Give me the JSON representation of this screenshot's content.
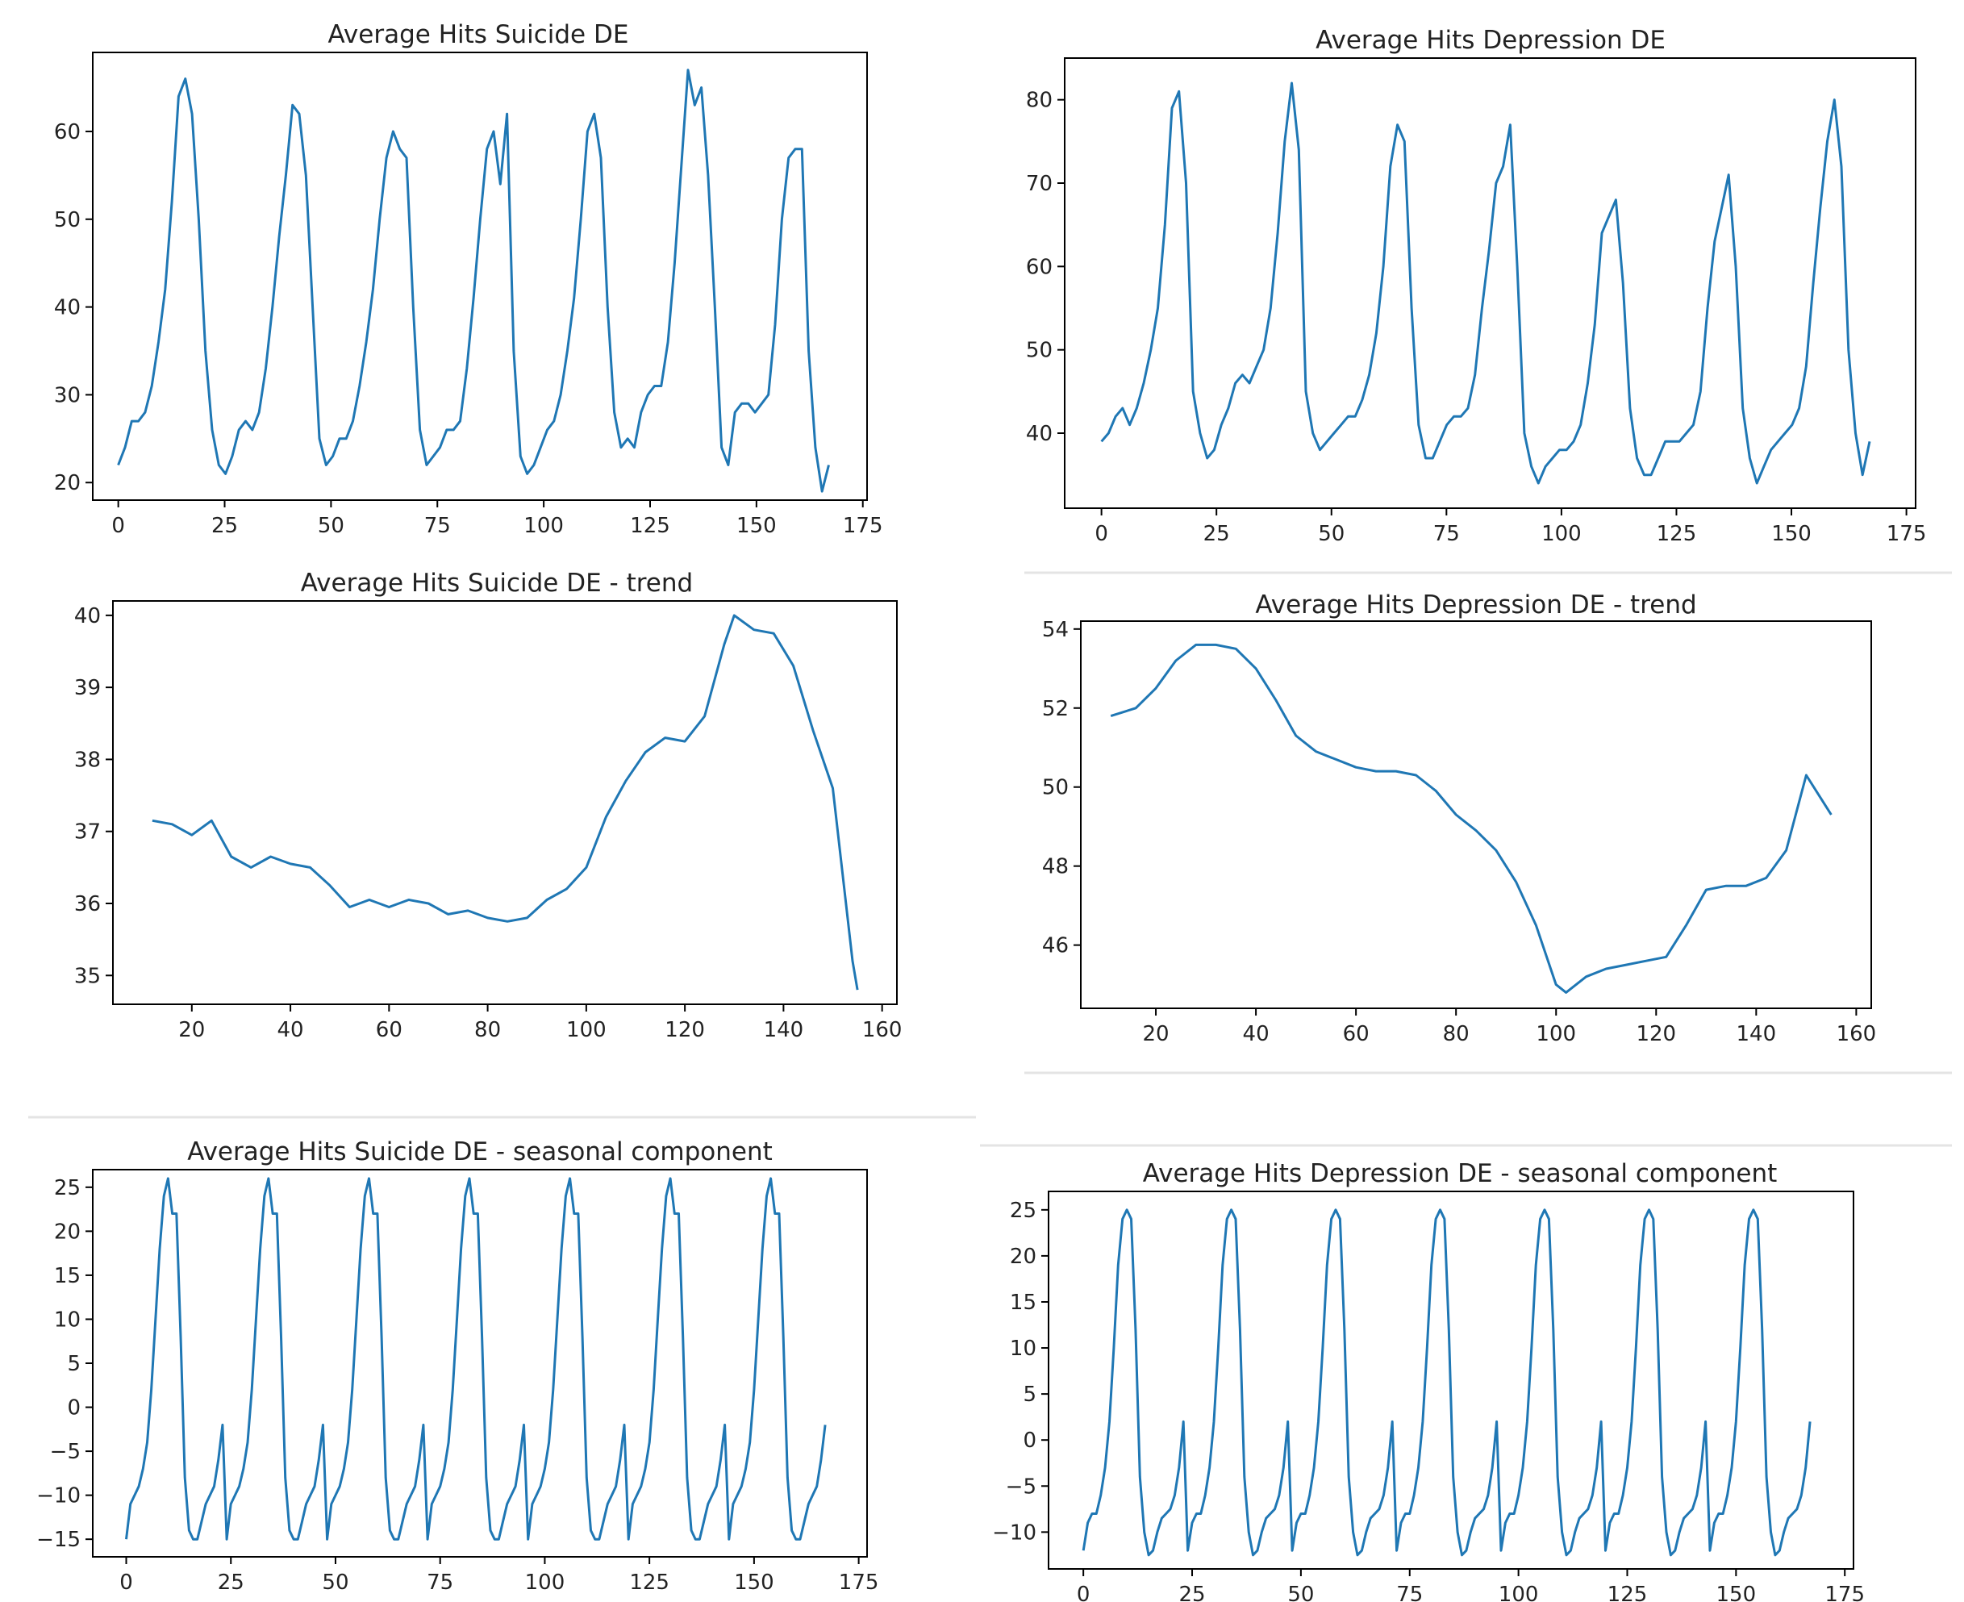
{
  "line_color": "#1f77b4",
  "axis_color": "#000000",
  "chart_data": [
    {
      "id": "suicide-raw",
      "type": "line",
      "title": "Average Hits Suicide DE",
      "xlabel": "",
      "ylabel": "",
      "xlim": [
        -6,
        176
      ],
      "ylim": [
        18,
        69
      ],
      "xticks": [
        0,
        25,
        50,
        75,
        100,
        125,
        150,
        175
      ],
      "yticks": [
        20,
        30,
        40,
        50,
        60
      ],
      "series": [
        {
          "name": "Average Hits Suicide DE",
          "x0": 0,
          "values": [
            22,
            24,
            27,
            27,
            28,
            31,
            36,
            42,
            52,
            64,
            66,
            62,
            50,
            35,
            26,
            22,
            21,
            23,
            26,
            27,
            26,
            28,
            33,
            40,
            48,
            55,
            63,
            62,
            55,
            40,
            25,
            22,
            23,
            25,
            25,
            27,
            31,
            36,
            42,
            50,
            57,
            60,
            58,
            57,
            40,
            26,
            22,
            23,
            24,
            26,
            26,
            27,
            33,
            41,
            50,
            58,
            60,
            54,
            62,
            35,
            23,
            21,
            22,
            24,
            26,
            27,
            30,
            35,
            41,
            50,
            60,
            62,
            57,
            40,
            28,
            24,
            25,
            24,
            28,
            30,
            31,
            31,
            36,
            45,
            56,
            67,
            63,
            65,
            55,
            40,
            24,
            22,
            28,
            29,
            29,
            28,
            29,
            30,
            38,
            50,
            57,
            58,
            58,
            35,
            24,
            19,
            22
          ]
        }
      ]
    },
    {
      "id": "depression-raw",
      "type": "line",
      "title": "Average Hits Depression DE",
      "xlabel": "",
      "ylabel": "",
      "xlim": [
        -8,
        177
      ],
      "ylim": [
        31,
        85
      ],
      "xticks": [
        0,
        25,
        50,
        75,
        100,
        125,
        150,
        175
      ],
      "yticks": [
        40,
        50,
        60,
        70,
        80
      ],
      "series": [
        {
          "name": "Average Hits Depression DE",
          "x0": 0,
          "values": [
            39,
            40,
            42,
            43,
            41,
            43,
            46,
            50,
            55,
            65,
            79,
            81,
            70,
            45,
            40,
            37,
            38,
            41,
            43,
            46,
            47,
            46,
            48,
            50,
            55,
            64,
            75,
            82,
            74,
            45,
            40,
            38,
            39,
            40,
            41,
            42,
            42,
            44,
            47,
            52,
            60,
            72,
            77,
            75,
            55,
            41,
            37,
            37,
            39,
            41,
            42,
            42,
            43,
            47,
            55,
            62,
            70,
            72,
            77,
            60,
            40,
            36,
            34,
            36,
            37,
            38,
            38,
            39,
            41,
            46,
            53,
            64,
            66,
            68,
            58,
            43,
            37,
            35,
            35,
            37,
            39,
            39,
            39,
            40,
            41,
            45,
            55,
            63,
            67,
            71,
            60,
            43,
            37,
            34,
            36,
            38,
            39,
            40,
            41,
            43,
            48,
            58,
            67,
            75,
            80,
            72,
            50,
            40,
            35,
            39
          ]
        }
      ]
    },
    {
      "id": "suicide-trend",
      "type": "line",
      "title": "Average Hits Suicide DE - trend",
      "xlabel": "",
      "ylabel": "",
      "xlim": [
        4,
        163
      ],
      "ylim": [
        34.6,
        40.2
      ],
      "xticks": [
        20,
        40,
        60,
        80,
        100,
        120,
        140,
        160
      ],
      "yticks": [
        35,
        36,
        37,
        38,
        39,
        40
      ],
      "series": [
        {
          "name": "trend",
          "x": [
            12,
            16,
            20,
            24,
            28,
            32,
            36,
            40,
            44,
            48,
            52,
            56,
            60,
            64,
            68,
            72,
            76,
            80,
            84,
            88,
            92,
            96,
            100,
            104,
            108,
            112,
            116,
            120,
            124,
            128,
            130,
            134,
            138,
            142,
            146,
            150,
            154,
            155
          ],
          "values": [
            37.15,
            37.1,
            36.95,
            37.15,
            36.65,
            36.5,
            36.65,
            36.55,
            36.5,
            36.25,
            35.95,
            36.05,
            35.95,
            36.05,
            36.0,
            35.85,
            35.9,
            35.8,
            35.75,
            35.8,
            36.05,
            36.2,
            36.5,
            37.2,
            37.7,
            38.1,
            38.3,
            38.25,
            38.6,
            39.6,
            40.0,
            39.8,
            39.75,
            39.3,
            38.4,
            37.6,
            35.2,
            34.8
          ]
        }
      ]
    },
    {
      "id": "depression-trend",
      "type": "line",
      "title": "Average Hits Depression DE - trend",
      "xlabel": "",
      "ylabel": "",
      "xlim": [
        5,
        163
      ],
      "ylim": [
        44.4,
        54.2
      ],
      "xticks": [
        20,
        40,
        60,
        80,
        100,
        120,
        140,
        160
      ],
      "yticks": [
        46,
        48,
        50,
        52,
        54
      ],
      "series": [
        {
          "name": "trend",
          "x": [
            11,
            16,
            20,
            24,
            28,
            32,
            36,
            40,
            44,
            48,
            52,
            56,
            60,
            64,
            68,
            72,
            76,
            80,
            84,
            88,
            92,
            96,
            100,
            102,
            106,
            110,
            114,
            118,
            122,
            126,
            130,
            134,
            138,
            142,
            146,
            150,
            154,
            155
          ],
          "values": [
            51.8,
            52.0,
            52.5,
            53.2,
            53.6,
            53.6,
            53.5,
            53.0,
            52.2,
            51.3,
            50.9,
            50.7,
            50.5,
            50.4,
            50.4,
            50.3,
            49.9,
            49.3,
            48.9,
            48.4,
            47.6,
            46.5,
            45.0,
            44.8,
            45.2,
            45.4,
            45.5,
            45.6,
            45.7,
            46.5,
            47.4,
            47.5,
            47.5,
            47.7,
            48.4,
            50.3,
            49.5,
            49.3
          ]
        }
      ]
    },
    {
      "id": "suicide-seasonal",
      "type": "line",
      "title": "Average Hits Suicide DE - seasonal component",
      "xlabel": "",
      "ylabel": "",
      "xlim": [
        -8,
        177
      ],
      "ylim": [
        -17,
        27
      ],
      "xticks": [
        0,
        25,
        50,
        75,
        100,
        125,
        150,
        175
      ],
      "yticks": [
        -15,
        -10,
        -5,
        0,
        5,
        10,
        15,
        20,
        25
      ],
      "period": 24,
      "n_points": 168,
      "series": [
        {
          "name": "seasonal",
          "x0": 0,
          "period_values": [
            -15,
            -11,
            -10,
            -9,
            -7,
            -4,
            2,
            10,
            18,
            24,
            26,
            22,
            22,
            8,
            -8,
            -14,
            -15,
            -15,
            -13,
            -11,
            -10,
            -9,
            -6,
            -2
          ]
        }
      ]
    },
    {
      "id": "depression-seasonal",
      "type": "line",
      "title": "Average Hits Depression DE - seasonal component",
      "xlabel": "",
      "ylabel": "",
      "xlim": [
        -8,
        177
      ],
      "ylim": [
        -14,
        27
      ],
      "xticks": [
        0,
        25,
        50,
        75,
        100,
        125,
        150,
        175
      ],
      "yticks": [
        -10,
        -5,
        0,
        5,
        10,
        15,
        20,
        25
      ],
      "period": 24,
      "n_points": 168,
      "series": [
        {
          "name": "seasonal",
          "x0": 0,
          "period_values": [
            -12,
            -9,
            -8,
            -8,
            -6,
            -3,
            2,
            10,
            19,
            24,
            25,
            24,
            12,
            -4,
            -10,
            -12.5,
            -12,
            -10,
            -8.5,
            -8,
            -7.5,
            -6,
            -3,
            2
          ]
        }
      ]
    }
  ]
}
